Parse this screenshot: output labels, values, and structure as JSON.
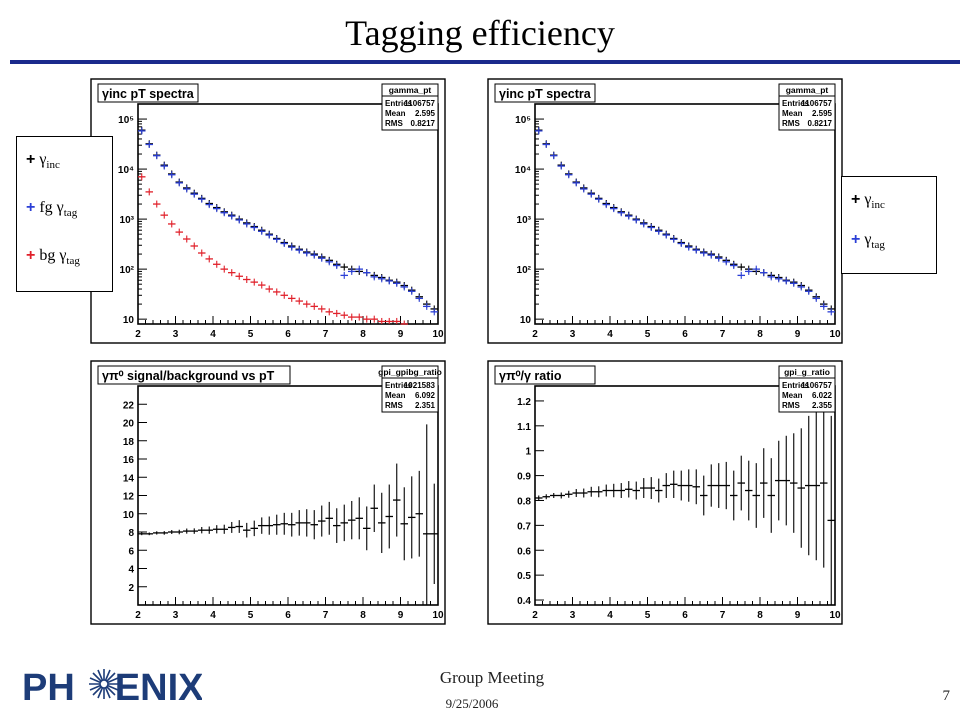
{
  "slide": {
    "title": "Tagging efficiency",
    "footer_meeting": "Group Meeting",
    "footer_date": "9/25/2006",
    "page_number": "7",
    "logo_text_left": "PH",
    "logo_text_right": "ENIX",
    "colors": {
      "title_rule": "#1a2a8c",
      "black": "#000000",
      "blue": "#2b3fd6",
      "red": "#e0202a",
      "logo": "#1d3c78"
    }
  },
  "legends": {
    "left": {
      "items": [
        {
          "text": "+",
          "greek": "γ",
          "sub": "inc",
          "prefix": "",
          "color": "#000000"
        },
        {
          "text": "+",
          "greek": "γ",
          "sub": "tag",
          "prefix": "fg ",
          "color": "#2b3fd6"
        },
        {
          "text": "+",
          "greek": "γ",
          "sub": "tag",
          "prefix": "bg ",
          "color": "#e0202a"
        }
      ]
    },
    "right": {
      "items": [
        {
          "text": "+",
          "greek": "γ",
          "sub": "inc",
          "prefix": "",
          "color": "#000000"
        },
        {
          "text": "+",
          "greek": "γ",
          "sub": "tag",
          "prefix": "",
          "color": "#2b3fd6"
        }
      ]
    }
  },
  "chart_data": [
    {
      "type": "scatter",
      "panel": "top-left",
      "title": "γinc pT spectra",
      "stats": {
        "name": "gamma_pt",
        "entries": "1106757",
        "mean": "2.595",
        "rms": "0.8217"
      },
      "xlim": [
        2,
        10
      ],
      "ylim": [
        8,
        200000
      ],
      "yscale": "log",
      "xticks": [
        2,
        3,
        4,
        5,
        6,
        7,
        8,
        9,
        10
      ],
      "yticks": [
        10,
        100,
        1000,
        10000,
        100000
      ],
      "ytick_labels": [
        "10",
        "10²",
        "10³",
        "10⁴",
        "10⁵"
      ],
      "series": [
        {
          "color": "#000000",
          "x": [
            2.1,
            2.3,
            2.5,
            2.7,
            2.9,
            3.1,
            3.3,
            3.5,
            3.7,
            3.9,
            4.1,
            4.3,
            4.5,
            4.7,
            4.9,
            5.1,
            5.3,
            5.5,
            5.7,
            5.9,
            6.1,
            6.3,
            6.5,
            6.7,
            6.9,
            7.1,
            7.3,
            7.5,
            7.7,
            7.9,
            8.1,
            8.3,
            8.5,
            8.7,
            8.9,
            9.1,
            9.3,
            9.5,
            9.7,
            9.9
          ],
          "y": [
            60000,
            32000,
            19000,
            12000,
            8000,
            5500,
            4200,
            3300,
            2600,
            2050,
            1700,
            1400,
            1200,
            1000,
            840,
            710,
            600,
            500,
            410,
            340,
            290,
            250,
            220,
            200,
            175,
            150,
            125,
            110,
            100,
            90,
            85,
            75,
            68,
            60,
            55,
            47,
            38,
            28,
            20,
            16
          ]
        },
        {
          "color": "#2b3fd6",
          "x": [
            2.1,
            2.3,
            2.5,
            2.7,
            2.9,
            3.1,
            3.3,
            3.5,
            3.7,
            3.9,
            4.1,
            4.3,
            4.5,
            4.7,
            4.9,
            5.1,
            5.3,
            5.5,
            5.7,
            5.9,
            6.1,
            6.3,
            6.5,
            6.7,
            6.9,
            7.1,
            7.3,
            7.5,
            7.7,
            7.9,
            8.1,
            8.3,
            8.5,
            8.7,
            8.9,
            9.1,
            9.3,
            9.5,
            9.7,
            9.9
          ],
          "y": [
            58000,
            31000,
            18500,
            11500,
            7700,
            5300,
            4000,
            3150,
            2500,
            1950,
            1620,
            1340,
            1150,
            960,
            800,
            680,
            570,
            480,
            395,
            325,
            275,
            240,
            210,
            190,
            165,
            140,
            118,
            75,
            90,
            100,
            85,
            70,
            64,
            58,
            52,
            44,
            36,
            26,
            18,
            14
          ]
        },
        {
          "color": "#e0202a",
          "x": [
            2.1,
            2.3,
            2.5,
            2.7,
            2.9,
            3.1,
            3.3,
            3.5,
            3.7,
            3.9,
            4.1,
            4.3,
            4.5,
            4.7,
            4.9,
            5.1,
            5.3,
            5.5,
            5.7,
            5.9,
            6.1,
            6.3,
            6.5,
            6.7,
            6.9,
            7.1,
            7.3,
            7.5,
            7.7,
            7.9,
            8.1,
            8.3,
            8.5,
            8.7,
            8.9,
            9.1
          ],
          "y": [
            7000,
            3500,
            2000,
            1200,
            800,
            550,
            400,
            290,
            210,
            160,
            125,
            100,
            85,
            72,
            62,
            55,
            48,
            40,
            35,
            30,
            26,
            23,
            20,
            18,
            16,
            14,
            13,
            12,
            11,
            11,
            10,
            10,
            9,
            9,
            9,
            8
          ]
        }
      ]
    },
    {
      "type": "scatter",
      "panel": "top-right",
      "title": "γinc pT spectra",
      "stats": {
        "name": "gamma_pt",
        "entries": "1106757",
        "mean": "2.595",
        "rms": "0.8217"
      },
      "xlim": [
        2,
        10
      ],
      "ylim": [
        8,
        200000
      ],
      "yscale": "log",
      "xticks": [
        2,
        3,
        4,
        5,
        6,
        7,
        8,
        9,
        10
      ],
      "yticks": [
        10,
        100,
        1000,
        10000,
        100000
      ],
      "ytick_labels": [
        "10",
        "10²",
        "10³",
        "10⁴",
        "10⁵"
      ],
      "series": [
        {
          "color": "#000000",
          "x": [
            2.1,
            2.3,
            2.5,
            2.7,
            2.9,
            3.1,
            3.3,
            3.5,
            3.7,
            3.9,
            4.1,
            4.3,
            4.5,
            4.7,
            4.9,
            5.1,
            5.3,
            5.5,
            5.7,
            5.9,
            6.1,
            6.3,
            6.5,
            6.7,
            6.9,
            7.1,
            7.3,
            7.5,
            7.7,
            7.9,
            8.1,
            8.3,
            8.5,
            8.7,
            8.9,
            9.1,
            9.3,
            9.5,
            9.7,
            9.9
          ],
          "y": [
            60000,
            32000,
            19000,
            12000,
            8000,
            5500,
            4200,
            3300,
            2600,
            2050,
            1700,
            1400,
            1200,
            1000,
            840,
            710,
            600,
            500,
            410,
            340,
            290,
            250,
            220,
            200,
            175,
            150,
            125,
            110,
            100,
            90,
            85,
            75,
            68,
            60,
            55,
            47,
            38,
            28,
            20,
            16
          ]
        },
        {
          "color": "#2b3fd6",
          "x": [
            2.1,
            2.3,
            2.5,
            2.7,
            2.9,
            3.1,
            3.3,
            3.5,
            3.7,
            3.9,
            4.1,
            4.3,
            4.5,
            4.7,
            4.9,
            5.1,
            5.3,
            5.5,
            5.7,
            5.9,
            6.1,
            6.3,
            6.5,
            6.7,
            6.9,
            7.1,
            7.3,
            7.5,
            7.7,
            7.9,
            8.1,
            8.3,
            8.5,
            8.7,
            8.9,
            9.1,
            9.3,
            9.5,
            9.7,
            9.9
          ],
          "y": [
            58000,
            31000,
            18500,
            11500,
            7700,
            5300,
            4000,
            3150,
            2500,
            1950,
            1620,
            1340,
            1150,
            960,
            800,
            680,
            570,
            480,
            395,
            325,
            275,
            240,
            210,
            190,
            165,
            140,
            118,
            75,
            90,
            100,
            85,
            70,
            64,
            58,
            52,
            44,
            36,
            26,
            18,
            14
          ]
        }
      ]
    },
    {
      "type": "scatter",
      "panel": "bottom-left",
      "title": "γπ⁰ signal/background vs pT",
      "stats": {
        "name": "gpi_gpibg_ratio",
        "entries": "1021583",
        "mean": "6.092",
        "rms": "2.351"
      },
      "xlim": [
        2,
        10
      ],
      "ylim": [
        0,
        24
      ],
      "yscale": "linear",
      "xticks": [
        2,
        3,
        4,
        5,
        6,
        7,
        8,
        9,
        10
      ],
      "yticks": [
        2,
        4,
        6,
        8,
        10,
        12,
        14,
        16,
        18,
        20,
        22
      ],
      "ytick_labels": [
        "2",
        "4",
        "6",
        "8",
        "10",
        "12",
        "14",
        "16",
        "18",
        "20",
        "22"
      ],
      "series": [
        {
          "color": "#000000",
          "x": [
            2.1,
            2.3,
            2.5,
            2.7,
            2.9,
            3.1,
            3.3,
            3.5,
            3.7,
            3.9,
            4.1,
            4.3,
            4.5,
            4.7,
            4.9,
            5.1,
            5.3,
            5.5,
            5.7,
            5.9,
            6.1,
            6.3,
            6.5,
            6.7,
            6.9,
            7.1,
            7.3,
            7.5,
            7.7,
            7.9,
            8.1,
            8.3,
            8.5,
            8.7,
            8.9,
            9.1,
            9.3,
            9.5,
            9.7,
            9.9
          ],
          "y": [
            7.8,
            7.8,
            7.9,
            7.9,
            8.0,
            8.0,
            8.1,
            8.1,
            8.2,
            8.2,
            8.3,
            8.3,
            8.5,
            8.6,
            8.2,
            8.4,
            8.7,
            8.7,
            8.8,
            8.9,
            8.8,
            9.0,
            9.0,
            8.8,
            9.2,
            9.5,
            8.7,
            9.0,
            9.3,
            9.5,
            8.4,
            10.6,
            9.0,
            9.7,
            11.5,
            8.9,
            9.6,
            10.0,
            7.8,
            7.8
          ],
          "err": [
            0.15,
            0.15,
            0.18,
            0.2,
            0.22,
            0.25,
            0.28,
            0.3,
            0.35,
            0.4,
            0.45,
            0.5,
            0.6,
            0.7,
            0.8,
            0.85,
            0.9,
            1.0,
            1.1,
            1.2,
            1.3,
            1.4,
            1.5,
            1.6,
            1.7,
            1.8,
            1.9,
            2.0,
            2.1,
            2.3,
            2.4,
            2.6,
            3.3,
            3.5,
            4.0,
            4.0,
            4.5,
            4.7,
            12.0,
            5.5
          ]
        }
      ]
    },
    {
      "type": "scatter",
      "panel": "bottom-right",
      "title": "γπ⁰/γ ratio",
      "stats": {
        "name": "gpi_g_ratio",
        "entries": "1106757",
        "mean": "6.022",
        "rms": "2.355"
      },
      "xlim": [
        2,
        10
      ],
      "ylim": [
        0.38,
        1.26
      ],
      "yscale": "linear",
      "xticks": [
        2,
        3,
        4,
        5,
        6,
        7,
        8,
        9,
        10
      ],
      "yticks": [
        0.4,
        0.5,
        0.6,
        0.7,
        0.8,
        0.9,
        1.0,
        1.1,
        1.2
      ],
      "ytick_labels": [
        "0.4",
        "0.5",
        "0.6",
        "0.7",
        "0.8",
        "0.9",
        "1",
        "1.1",
        "1.2"
      ],
      "series": [
        {
          "color": "#000000",
          "x": [
            2.1,
            2.3,
            2.5,
            2.7,
            2.9,
            3.1,
            3.3,
            3.5,
            3.7,
            3.9,
            4.1,
            4.3,
            4.5,
            4.7,
            4.9,
            5.1,
            5.3,
            5.5,
            5.7,
            5.9,
            6.1,
            6.3,
            6.5,
            6.7,
            6.9,
            7.1,
            7.3,
            7.5,
            7.7,
            7.9,
            8.1,
            8.3,
            8.5,
            8.7,
            8.9,
            9.1,
            9.3,
            9.5,
            9.7,
            9.9
          ],
          "y": [
            0.81,
            0.815,
            0.82,
            0.82,
            0.825,
            0.83,
            0.83,
            0.835,
            0.835,
            0.84,
            0.84,
            0.84,
            0.845,
            0.84,
            0.85,
            0.85,
            0.84,
            0.86,
            0.865,
            0.86,
            0.86,
            0.855,
            0.82,
            0.86,
            0.86,
            0.86,
            0.82,
            0.87,
            0.84,
            0.82,
            0.87,
            0.82,
            0.88,
            0.88,
            0.87,
            0.85,
            0.86,
            0.86,
            0.87,
            0.72
          ],
          "err": [
            0.01,
            0.01,
            0.01,
            0.012,
            0.014,
            0.016,
            0.018,
            0.02,
            0.022,
            0.024,
            0.027,
            0.03,
            0.033,
            0.036,
            0.04,
            0.044,
            0.048,
            0.05,
            0.055,
            0.06,
            0.065,
            0.07,
            0.08,
            0.085,
            0.09,
            0.095,
            0.1,
            0.11,
            0.12,
            0.13,
            0.14,
            0.15,
            0.16,
            0.18,
            0.2,
            0.24,
            0.28,
            0.3,
            0.34,
            0.42
          ]
        }
      ]
    }
  ]
}
